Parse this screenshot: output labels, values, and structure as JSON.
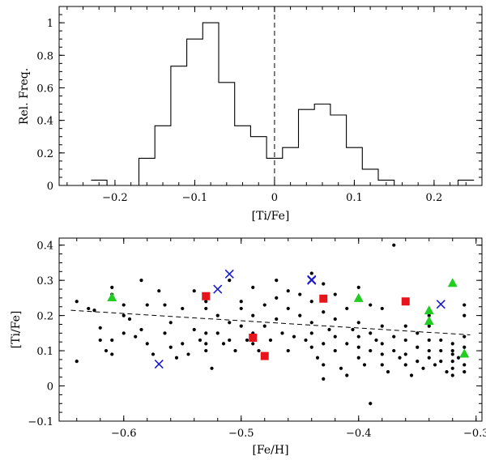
{
  "chart_data": [
    {
      "type": "histogram",
      "title": "",
      "xlabel": "[Ti/Fe]",
      "ylabel": "Rel. Freq.",
      "xlim": [
        -0.27,
        0.26
      ],
      "ylim": [
        0,
        1.1
      ],
      "xticks": [
        -0.2,
        -0.1,
        0,
        0.1,
        0.2
      ],
      "xtick_labels": [
        "−0.2",
        "−0.1",
        "0",
        "0.1",
        "0.2"
      ],
      "yticks": [
        0,
        0.2,
        0.4,
        0.6,
        0.8,
        1
      ],
      "ytick_labels": [
        "0",
        "0.2",
        "0.4",
        "0.6",
        "0.8",
        "1"
      ],
      "bins": [
        {
          "x0": -0.23,
          "x1": -0.21,
          "value": 0.033
        },
        {
          "x0": -0.21,
          "x1": -0.17,
          "value": 0
        },
        {
          "x0": -0.17,
          "x1": -0.15,
          "value": 0.167
        },
        {
          "x0": -0.15,
          "x1": -0.13,
          "value": 0.367
        },
        {
          "x0": -0.13,
          "x1": -0.11,
          "value": 0.733
        },
        {
          "x0": -0.11,
          "x1": -0.09,
          "value": 0.9
        },
        {
          "x0": -0.09,
          "x1": -0.07,
          "value": 1.0
        },
        {
          "x0": -0.07,
          "x1": -0.05,
          "value": 0.633
        },
        {
          "x0": -0.05,
          "x1": -0.03,
          "value": 0.367
        },
        {
          "x0": -0.03,
          "x1": -0.01,
          "value": 0.3
        },
        {
          "x0": -0.01,
          "x1": 0.01,
          "value": 0.167
        },
        {
          "x0": 0.01,
          "x1": 0.03,
          "value": 0.233
        },
        {
          "x0": 0.03,
          "x1": 0.05,
          "value": 0.467
        },
        {
          "x0": 0.05,
          "x1": 0.07,
          "value": 0.5
        },
        {
          "x0": 0.07,
          "x1": 0.09,
          "value": 0.433
        },
        {
          "x0": 0.09,
          "x1": 0.11,
          "value": 0.233
        },
        {
          "x0": 0.11,
          "x1": 0.13,
          "value": 0.1
        },
        {
          "x0": 0.13,
          "x1": 0.15,
          "value": 0.033
        },
        {
          "x0": 0.15,
          "x1": 0.23,
          "value": 0
        },
        {
          "x0": 0.23,
          "x1": 0.25,
          "value": 0.033
        }
      ],
      "reference_line": {
        "x": 0,
        "style": "dashed"
      }
    },
    {
      "type": "scatter",
      "title": "",
      "xlabel": "[Fe/H]",
      "ylabel": "[Ti/Fe]",
      "xlim": [
        -0.655,
        -0.295
      ],
      "ylim": [
        -0.1,
        0.42
      ],
      "xticks": [
        -0.6,
        -0.5,
        -0.4,
        -0.3
      ],
      "xtick_labels": [
        "−0.6",
        "−0.5",
        "−0.4",
        "−0.3"
      ],
      "yticks": [
        -0.1,
        0,
        0.1,
        0.2,
        0.3,
        0.4
      ],
      "ytick_labels": [
        "−0.1",
        "0",
        "0.1",
        "0.2",
        "0.3",
        "0.4"
      ],
      "trend_line": {
        "style": "dashed",
        "x": [
          -0.645,
          -0.305
        ],
        "y": [
          0.215,
          0.145
        ]
      },
      "series": [
        {
          "name": "stars",
          "marker": "dot",
          "color": "#000000",
          "points": [
            [
              -0.64,
              0.24
            ],
            [
              -0.64,
              0.07
            ],
            [
              -0.63,
              0.22
            ],
            [
              -0.625,
              0.215
            ],
            [
              -0.62,
              0.13
            ],
            [
              -0.62,
              0.165
            ],
            [
              -0.615,
              0.1
            ],
            [
              -0.61,
              0.28
            ],
            [
              -0.61,
              0.26
            ],
            [
              -0.61,
              0.13
            ],
            [
              -0.61,
              0.09
            ],
            [
              -0.6,
              0.23
            ],
            [
              -0.6,
              0.2
            ],
            [
              -0.6,
              0.15
            ],
            [
              -0.595,
              0.19
            ],
            [
              -0.59,
              0.14
            ],
            [
              -0.585,
              0.3
            ],
            [
              -0.585,
              0.16
            ],
            [
              -0.58,
              0.23
            ],
            [
              -0.58,
              0.12
            ],
            [
              -0.575,
              0.09
            ],
            [
              -0.57,
              0.27
            ],
            [
              -0.565,
              0.23
            ],
            [
              -0.565,
              0.15
            ],
            [
              -0.56,
              0.18
            ],
            [
              -0.56,
              0.11
            ],
            [
              -0.555,
              0.08
            ],
            [
              -0.55,
              0.22
            ],
            [
              -0.55,
              0.12
            ],
            [
              -0.545,
              0.09
            ],
            [
              -0.54,
              0.27
            ],
            [
              -0.54,
              0.16
            ],
            [
              -0.535,
              0.13
            ],
            [
              -0.53,
              0.26
            ],
            [
              -0.53,
              0.24
            ],
            [
              -0.53,
              0.22
            ],
            [
              -0.53,
              0.15
            ],
            [
              -0.53,
              0.12
            ],
            [
              -0.53,
              0.1
            ],
            [
              -0.525,
              0.05
            ],
            [
              -0.52,
              0.2
            ],
            [
              -0.52,
              0.15
            ],
            [
              -0.515,
              0.12
            ],
            [
              -0.51,
              0.3
            ],
            [
              -0.51,
              0.18
            ],
            [
              -0.51,
              0.13
            ],
            [
              -0.505,
              0.1
            ],
            [
              -0.5,
              0.24
            ],
            [
              -0.5,
              0.22
            ],
            [
              -0.5,
              0.17
            ],
            [
              -0.495,
              0.13
            ],
            [
              -0.49,
              0.28
            ],
            [
              -0.49,
              0.2
            ],
            [
              -0.49,
              0.15
            ],
            [
              -0.49,
              0.12
            ],
            [
              -0.485,
              0.1
            ],
            [
              -0.48,
              0.23
            ],
            [
              -0.48,
              0.17
            ],
            [
              -0.475,
              0.13
            ],
            [
              -0.47,
              0.3
            ],
            [
              -0.47,
              0.25
            ],
            [
              -0.47,
              0.19
            ],
            [
              -0.465,
              0.15
            ],
            [
              -0.46,
              0.27
            ],
            [
              -0.46,
              0.22
            ],
            [
              -0.46,
              0.1
            ],
            [
              -0.455,
              0.14
            ],
            [
              -0.45,
              0.26
            ],
            [
              -0.45,
              0.2
            ],
            [
              -0.445,
              0.13
            ],
            [
              -0.44,
              0.32
            ],
            [
              -0.44,
              0.24
            ],
            [
              -0.44,
              0.18
            ],
            [
              -0.44,
              0.15
            ],
            [
              -0.44,
              0.11
            ],
            [
              -0.435,
              0.08
            ],
            [
              -0.43,
              0.29
            ],
            [
              -0.43,
              0.21
            ],
            [
              -0.43,
              0.12
            ],
            [
              -0.43,
              0.06
            ],
            [
              -0.43,
              0.02
            ],
            [
              -0.425,
              0.16
            ],
            [
              -0.42,
              0.26
            ],
            [
              -0.42,
              0.19
            ],
            [
              -0.42,
              0.14
            ],
            [
              -0.42,
              0.1
            ],
            [
              -0.415,
              0.05
            ],
            [
              -0.41,
              0.22
            ],
            [
              -0.41,
              0.12
            ],
            [
              -0.41,
              0.03
            ],
            [
              -0.405,
              0.16
            ],
            [
              -0.4,
              0.28
            ],
            [
              -0.4,
              0.25
            ],
            [
              -0.4,
              0.18
            ],
            [
              -0.4,
              0.14
            ],
            [
              -0.4,
              0.11
            ],
            [
              -0.4,
              0.08
            ],
            [
              -0.395,
              0.06
            ],
            [
              -0.39,
              0.23
            ],
            [
              -0.39,
              0.15
            ],
            [
              -0.39,
              0.1
            ],
            [
              -0.39,
              -0.05
            ],
            [
              -0.385,
              0.13
            ],
            [
              -0.38,
              0.22
            ],
            [
              -0.38,
              0.17
            ],
            [
              -0.38,
              0.12
            ],
            [
              -0.38,
              0.09
            ],
            [
              -0.38,
              0.06
            ],
            [
              -0.375,
              0.04
            ],
            [
              -0.37,
              0.4
            ],
            [
              -0.37,
              0.14
            ],
            [
              -0.37,
              0.1
            ],
            [
              -0.365,
              0.08
            ],
            [
              -0.36,
              0.17
            ],
            [
              -0.36,
              0.13
            ],
            [
              -0.36,
              0.09
            ],
            [
              -0.36,
              0.06
            ],
            [
              -0.355,
              0.03
            ],
            [
              -0.35,
              0.15
            ],
            [
              -0.35,
              0.11
            ],
            [
              -0.35,
              0.07
            ],
            [
              -0.345,
              0.05
            ],
            [
              -0.34,
              0.2
            ],
            [
              -0.34,
              0.17
            ],
            [
              -0.34,
              0.13
            ],
            [
              -0.34,
              0.1
            ],
            [
              -0.34,
              0.08
            ],
            [
              -0.335,
              0.06
            ],
            [
              -0.33,
              0.13
            ],
            [
              -0.33,
              0.1
            ],
            [
              -0.33,
              0.07
            ],
            [
              -0.325,
              0.04
            ],
            [
              -0.32,
              0.12
            ],
            [
              -0.32,
              0.1
            ],
            [
              -0.32,
              0.09
            ],
            [
              -0.32,
              0.07
            ],
            [
              -0.32,
              0.05
            ],
            [
              -0.32,
              0.03
            ],
            [
              -0.315,
              0.08
            ],
            [
              -0.31,
              0.23
            ],
            [
              -0.31,
              0.2
            ],
            [
              -0.31,
              0.14
            ],
            [
              -0.31,
              0.11
            ],
            [
              -0.31,
              0.06
            ],
            [
              -0.31,
              0.04
            ]
          ]
        },
        {
          "name": "red squares",
          "marker": "square",
          "color": "#e8141c",
          "points": [
            [
              -0.53,
              0.255
            ],
            [
              -0.49,
              0.137
            ],
            [
              -0.48,
              0.085
            ],
            [
              -0.43,
              0.248
            ],
            [
              -0.36,
              0.24
            ]
          ]
        },
        {
          "name": "green triangles",
          "marker": "triangle",
          "color": "#22cc22",
          "points": [
            [
              -0.61,
              0.252
            ],
            [
              -0.4,
              0.25
            ],
            [
              -0.34,
              0.215
            ],
            [
              -0.34,
              0.185
            ],
            [
              -0.32,
              0.293
            ],
            [
              -0.31,
              0.092
            ]
          ]
        },
        {
          "name": "blue crosses",
          "marker": "cross",
          "color": "#1a1acc",
          "points": [
            [
              -0.57,
              0.062
            ],
            [
              -0.52,
              0.275
            ],
            [
              -0.51,
              0.318
            ],
            [
              -0.44,
              0.302
            ],
            [
              -0.44,
              0.3
            ],
            [
              -0.33,
              0.232
            ]
          ]
        }
      ]
    }
  ]
}
